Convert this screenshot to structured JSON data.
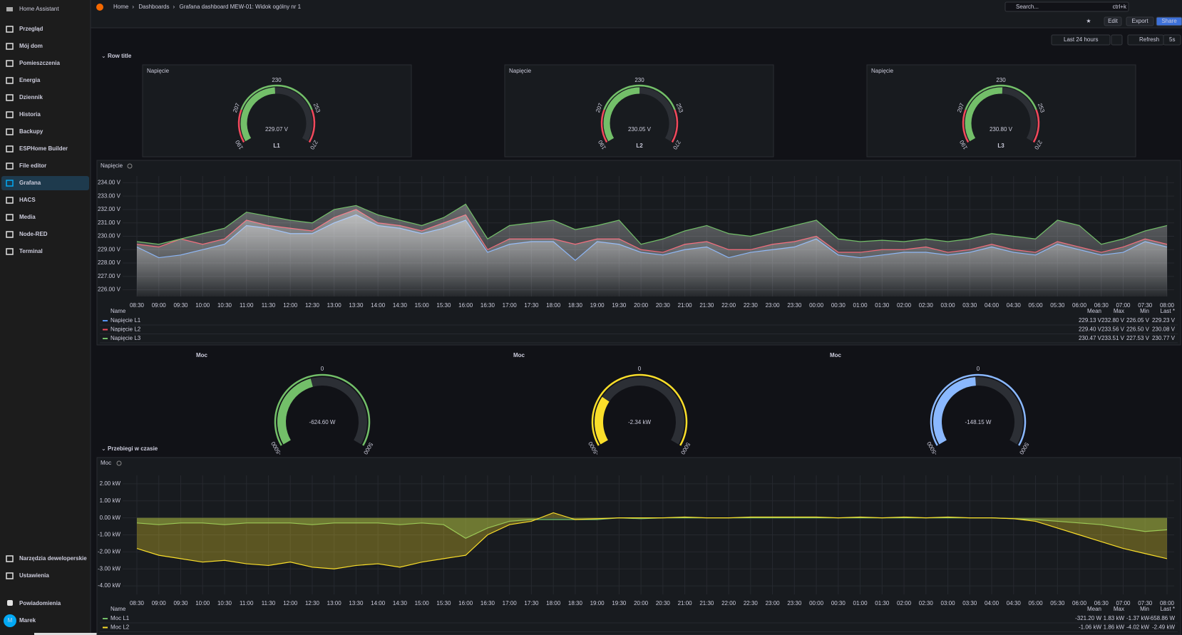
{
  "sidebar": {
    "title": "Home Assistant",
    "nav": [
      "Przegląd",
      "Mój dom",
      "Pomieszczenia",
      "Energia",
      "Dziennik",
      "Historia",
      "Backupy",
      "ESPHome Builder",
      "File editor",
      "Grafana",
      "HACS",
      "Media",
      "Node-RED",
      "Terminal"
    ],
    "active": 9,
    "nav_bottom": [
      "Narzędzia deweloperskie",
      "Ustawienia"
    ],
    "notifications": "Powiadomienia",
    "user": "Marek",
    "avatar": "M"
  },
  "topbar": {
    "breadcrumb": [
      "Home",
      "Dashboards",
      "Grafana dashboard MEW-01: Widok ogólny nr 1"
    ],
    "search": "Search...",
    "shortcut": "ctrl+k",
    "buttons": [
      "Edit",
      "Export",
      "Share"
    ],
    "time_range": "Last 24 hours",
    "refresh": "Refresh",
    "interval": "5s"
  },
  "rows": [
    "Row title",
    "Przebiegi w czasie"
  ],
  "voltage_gauges": [
    {
      "title": "Napięcie",
      "value": 229.07,
      "value_label": "229.07 V",
      "name": "L1",
      "range": [
        190,
        270
      ],
      "ticks": [
        190,
        207,
        230,
        253,
        270
      ],
      "thresholds": [
        207,
        253
      ],
      "color": "#73bf69",
      "alert_color": "#f2495c"
    },
    {
      "title": "Napięcie",
      "value": 230.05,
      "value_label": "230.05 V",
      "name": "L2",
      "range": [
        190,
        270
      ],
      "ticks": [
        190,
        207,
        230,
        253,
        270
      ],
      "thresholds": [
        207,
        253
      ],
      "color": "#73bf69",
      "alert_color": "#f2495c"
    },
    {
      "title": "Napięcie",
      "value": 230.8,
      "value_label": "230.80 V",
      "name": "L3",
      "range": [
        190,
        270
      ],
      "ticks": [
        190,
        207,
        230,
        253,
        270
      ],
      "thresholds": [
        207,
        253
      ],
      "color": "#73bf69",
      "alert_color": "#f2495c"
    }
  ],
  "power_gauges": [
    {
      "title": "Moc",
      "value": -624.6,
      "value_label": "-624.60 W",
      "range": [
        -5000,
        5000
      ],
      "ticks": [
        -5000,
        0,
        5000
      ],
      "color": "#73bf69"
    },
    {
      "title": "Moc",
      "value": -2340,
      "value_label": "-2.34 kW",
      "range": [
        -5000,
        5000
      ],
      "ticks": [
        -5000,
        0,
        5000
      ],
      "color": "#fade2a"
    },
    {
      "title": "Moc",
      "value": -148.15,
      "value_label": "-148.15 W",
      "range": [
        -5000,
        5000
      ],
      "ticks": [
        -5000,
        0,
        5000
      ],
      "color": "#8ab8ff"
    }
  ],
  "voltage_chart": {
    "type": "line",
    "title": "Napięcie",
    "x": [
      "08:30",
      "09:00",
      "09:30",
      "10:00",
      "10:30",
      "11:00",
      "11:30",
      "12:00",
      "12:30",
      "13:00",
      "13:30",
      "14:00",
      "14:30",
      "15:00",
      "15:30",
      "16:00",
      "16:30",
      "17:00",
      "17:30",
      "18:00",
      "18:30",
      "19:00",
      "19:30",
      "20:00",
      "20:30",
      "21:00",
      "21:30",
      "22:00",
      "22:30",
      "23:00",
      "23:30",
      "00:00",
      "00:30",
      "01:00",
      "01:30",
      "02:00",
      "02:30",
      "03:00",
      "03:30",
      "04:00",
      "04:30",
      "05:00",
      "05:30",
      "06:00",
      "06:30",
      "07:00",
      "07:30",
      "08:00"
    ],
    "ylim": [
      225.5,
      234.5
    ],
    "yticks": [
      {
        "value": 226,
        "label": "226.00 V"
      },
      {
        "value": 227,
        "label": "227.00 V"
      },
      {
        "value": 228,
        "label": "228.00 V"
      },
      {
        "value": 229,
        "label": "229.00 V"
      },
      {
        "value": 230,
        "label": "230.00 V"
      },
      {
        "value": 231,
        "label": "231.00 V"
      },
      {
        "value": 232,
        "label": "232.00 V"
      },
      {
        "value": 233,
        "label": "233.00 V"
      },
      {
        "value": 234,
        "label": "234.00 V"
      }
    ],
    "grid": true,
    "legend_columns": [
      "Name",
      "Mean",
      "Max",
      "Min",
      "Last *"
    ],
    "series": [
      {
        "name": "Napięcie L1",
        "color": "#5794f2",
        "stats": [
          "229.13 V",
          "232.80 V",
          "226.05 V",
          "229.23 V"
        ],
        "values": [
          229.2,
          228.4,
          228.6,
          229.0,
          229.4,
          230.8,
          230.6,
          230.2,
          230.2,
          231.0,
          231.6,
          230.8,
          230.6,
          230.2,
          230.6,
          231.2,
          228.8,
          229.4,
          229.6,
          229.6,
          228.2,
          229.6,
          229.4,
          228.8,
          228.6,
          229.0,
          229.2,
          228.4,
          228.8,
          229.0,
          229.2,
          229.8,
          228.6,
          228.4,
          228.6,
          228.8,
          228.8,
          228.6,
          228.8,
          229.2,
          228.8,
          228.6,
          229.4,
          229.0,
          228.6,
          228.8,
          229.6,
          229.2
        ]
      },
      {
        "name": "Napięcie L2",
        "color": "#f2495c",
        "stats": [
          "229.40 V",
          "233.56 V",
          "226.50 V",
          "230.08 V"
        ],
        "values": [
          229.4,
          229.2,
          229.8,
          229.4,
          229.8,
          231.2,
          230.8,
          230.6,
          230.4,
          231.4,
          232.0,
          231.0,
          230.8,
          230.4,
          231.0,
          231.6,
          229.0,
          229.8,
          229.8,
          229.8,
          229.4,
          229.8,
          229.8,
          229.0,
          228.8,
          229.4,
          229.6,
          229.0,
          229.0,
          229.4,
          229.6,
          230.0,
          228.8,
          228.8,
          229.0,
          229.0,
          229.2,
          228.8,
          229.0,
          229.4,
          229.0,
          228.8,
          229.6,
          229.2,
          228.8,
          229.2,
          229.8,
          229.4
        ]
      },
      {
        "name": "Napięcie L3",
        "color": "#73bf69",
        "stats": [
          "230.47 V",
          "233.51 V",
          "227.53 V",
          "230.77 V"
        ],
        "values": [
          229.6,
          229.4,
          229.8,
          230.2,
          230.6,
          231.8,
          231.5,
          231.2,
          231.0,
          232.0,
          232.3,
          231.6,
          231.2,
          230.8,
          231.4,
          232.4,
          229.8,
          230.8,
          231.0,
          231.2,
          230.5,
          230.8,
          231.2,
          229.4,
          229.8,
          230.4,
          230.8,
          230.2,
          230.0,
          230.4,
          230.8,
          231.2,
          229.8,
          229.6,
          229.7,
          229.6,
          229.8,
          229.6,
          229.8,
          230.2,
          230.0,
          229.8,
          231.2,
          230.8,
          229.4,
          229.8,
          230.4,
          230.8
        ]
      }
    ]
  },
  "power_chart": {
    "type": "line",
    "title": "Moc",
    "x": [
      "08:30",
      "09:00",
      "09:30",
      "10:00",
      "10:30",
      "11:00",
      "11:30",
      "12:00",
      "12:30",
      "13:00",
      "13:30",
      "14:00",
      "14:30",
      "15:00",
      "15:30",
      "16:00",
      "16:30",
      "17:00",
      "17:30",
      "18:00",
      "18:30",
      "19:00",
      "19:30",
      "20:00",
      "20:30",
      "21:00",
      "21:30",
      "22:00",
      "22:30",
      "23:00",
      "23:30",
      "00:00",
      "00:30",
      "01:00",
      "01:30",
      "02:00",
      "02:30",
      "03:00",
      "03:30",
      "04:00",
      "04:30",
      "05:00",
      "05:30",
      "06:00",
      "06:30",
      "07:00",
      "07:30",
      "08:00"
    ],
    "ylim": [
      -4.5,
      2.5
    ],
    "yticks": [
      {
        "value": 2,
        "label": "2.00 kW"
      },
      {
        "value": 1,
        "label": "1.00 kW"
      },
      {
        "value": 0,
        "label": "0.00 kW"
      },
      {
        "value": -1,
        "label": "-1.00 kW"
      },
      {
        "value": -2,
        "label": "-2.00 kW"
      },
      {
        "value": -3,
        "label": "-3.00 kW"
      },
      {
        "value": -4,
        "label": "-4.00 kW"
      }
    ],
    "grid": true,
    "legend_columns": [
      "Name",
      "Mean",
      "Max",
      "Min",
      "Last *"
    ],
    "series": [
      {
        "name": "Moc L1",
        "color": "#73bf69",
        "stats": [
          "-321.20 W",
          "1.83 kW",
          "-1.37 kW",
          "-658.86 W"
        ],
        "values": [
          -0.3,
          -0.4,
          -0.3,
          -0.3,
          -0.4,
          -0.3,
          -0.3,
          -0.3,
          -0.4,
          -0.3,
          -0.3,
          -0.3,
          -0.4,
          -0.3,
          -0.4,
          -1.2,
          -0.6,
          -0.2,
          -0.1,
          -0.1,
          -0.1,
          -0.1,
          0,
          -0.05,
          0,
          0,
          0,
          0,
          0,
          0,
          0,
          0,
          0,
          0,
          0,
          0,
          0,
          0,
          0,
          0,
          -0.05,
          -0.1,
          -0.2,
          -0.3,
          -0.4,
          -0.6,
          -0.8,
          -0.7
        ]
      },
      {
        "name": "Moc L2",
        "color": "#fade2a",
        "stats": [
          "-1.06 kW",
          "1.86 kW",
          "-4.02 kW",
          "-2.49 kW"
        ],
        "values": [
          -1.8,
          -2.2,
          -2.4,
          -2.6,
          -2.5,
          -2.7,
          -2.8,
          -2.6,
          -2.9,
          -3.0,
          -2.8,
          -2.7,
          -2.9,
          -2.6,
          -2.4,
          -2.2,
          -1.0,
          -0.4,
          -0.2,
          0.3,
          -0.1,
          -0.05,
          0,
          0,
          0,
          0.05,
          0,
          0,
          0.05,
          0.05,
          0.05,
          0.05,
          0,
          0.05,
          0,
          0.05,
          0,
          0.05,
          0,
          0,
          -0.05,
          -0.2,
          -0.6,
          -1.0,
          -1.4,
          -1.8,
          -2.1,
          -2.4
        ]
      }
    ]
  }
}
